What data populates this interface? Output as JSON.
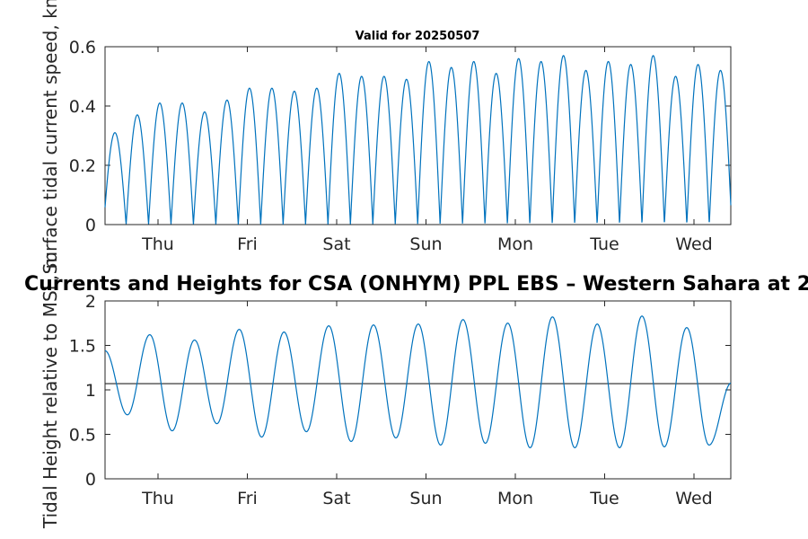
{
  "chart_data": [
    {
      "type": "line",
      "title": "Valid for 20250507",
      "ylabel": "Surface tidal current speed, kn",
      "ylim": [
        0,
        0.6
      ],
      "yticks": [
        "0",
        "0.2",
        "0.4",
        "0.6"
      ],
      "xticks": [
        "Thu",
        "Fri",
        "Sat",
        "Sun",
        "Mon",
        "Tue",
        "Wed"
      ],
      "grid": false,
      "color": "#0072BD",
      "series": [
        {
          "peak_speeds": [
            0.31,
            0.37,
            0.41,
            0.41,
            0.38,
            0.42,
            0.46,
            0.46,
            0.45,
            0.46,
            0.51,
            0.5,
            0.5,
            0.49,
            0.55,
            0.53,
            0.55,
            0.51,
            0.56,
            0.55,
            0.57,
            0.52,
            0.55,
            0.54,
            0.57,
            0.5,
            0.54,
            0.52
          ]
        }
      ]
    },
    {
      "type": "line",
      "title": "Currents and Heights for CSA (ONHYM) PPL EBS  – Western Sahara at 2",
      "ylabel": "Tidal Height relative to MSL, m",
      "ylim": [
        0,
        2
      ],
      "yticks": [
        "0",
        "0.5",
        "1",
        "1.5",
        "2"
      ],
      "xticks": [
        "Thu",
        "Fri",
        "Sat",
        "Sun",
        "Mon",
        "Tue",
        "Wed"
      ],
      "grid": false,
      "color": "#0072BD",
      "reference_line": 1.07,
      "series": [
        {
          "high_waters": [
            1.44,
            1.62,
            1.56,
            1.68,
            1.65,
            1.72,
            1.73,
            1.74,
            1.79,
            1.75,
            1.82,
            1.74,
            1.83,
            1.7,
            1.08
          ],
          "low_waters": [
            0.72,
            0.54,
            0.62,
            0.47,
            0.53,
            0.42,
            0.46,
            0.38,
            0.4,
            0.35,
            0.35,
            0.35,
            0.36,
            0.38
          ]
        }
      ]
    }
  ]
}
